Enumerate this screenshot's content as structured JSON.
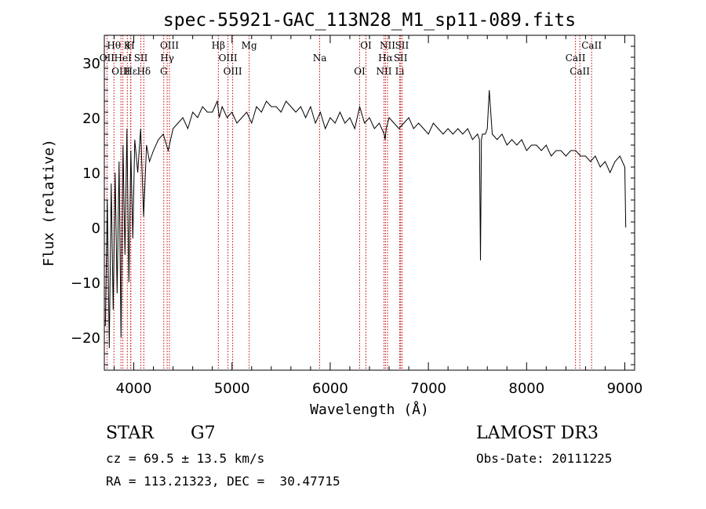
{
  "chart_data": {
    "type": "line",
    "title": "spec-55921-GAC_113N28_M1_sp11-089.fits",
    "xlabel": "Wavelength (Å)",
    "ylabel": "Flux (relative)",
    "xlim": [
      3700,
      9100
    ],
    "ylim": [
      -26,
      35
    ],
    "xticks": [
      4000,
      5000,
      6000,
      7000,
      8000,
      9000
    ],
    "yticks": [
      -20,
      -10,
      0,
      10,
      20,
      30
    ],
    "series": [
      {
        "name": "flux",
        "x": [
          3710,
          3730,
          3750,
          3770,
          3790,
          3810,
          3830,
          3850,
          3870,
          3890,
          3910,
          3930,
          3950,
          3970,
          3990,
          4010,
          4040,
          4070,
          4100,
          4130,
          4160,
          4200,
          4250,
          4300,
          4350,
          4400,
          4450,
          4500,
          4550,
          4600,
          4650,
          4700,
          4750,
          4800,
          4850,
          4870,
          4900,
          4950,
          5000,
          5050,
          5100,
          5150,
          5200,
          5250,
          5300,
          5350,
          5400,
          5450,
          5500,
          5550,
          5600,
          5650,
          5700,
          5750,
          5800,
          5850,
          5900,
          5950,
          6000,
          6050,
          6100,
          6150,
          6200,
          6250,
          6300,
          6350,
          6400,
          6450,
          6500,
          6550,
          6560,
          6570,
          6600,
          6650,
          6700,
          6750,
          6800,
          6850,
          6900,
          6950,
          7000,
          7050,
          7100,
          7150,
          7200,
          7250,
          7300,
          7350,
          7400,
          7450,
          7500,
          7520,
          7530,
          7540,
          7550,
          7580,
          7600,
          7620,
          7650,
          7700,
          7750,
          7800,
          7850,
          7900,
          7950,
          8000,
          8050,
          8100,
          8150,
          8200,
          8250,
          8300,
          8350,
          8400,
          8450,
          8500,
          8550,
          8600,
          8650,
          8700,
          8750,
          8800,
          8850,
          8900,
          8950,
          9000,
          9010
        ],
        "values": [
          -18,
          5,
          -22,
          8,
          -15,
          10,
          -12,
          12,
          -20,
          15,
          -5,
          18,
          -10,
          14,
          -2,
          16,
          10,
          18,
          2,
          15,
          12,
          14,
          16,
          17,
          14,
          18,
          19,
          20,
          18,
          21,
          20,
          22,
          21,
          21,
          23,
          20,
          22,
          20,
          21,
          19,
          20,
          21,
          19,
          22,
          21,
          23,
          22,
          22,
          21,
          23,
          22,
          21,
          22,
          20,
          22,
          19,
          21,
          18,
          20,
          19,
          21,
          19,
          20,
          18,
          22,
          19,
          20,
          18,
          19,
          17,
          16,
          18,
          20,
          19,
          18,
          19,
          20,
          18,
          19,
          18,
          17,
          19,
          18,
          17,
          18,
          17,
          18,
          17,
          18,
          16,
          17,
          16,
          -6,
          16,
          17,
          17,
          18,
          25,
          17,
          16,
          17,
          15,
          16,
          15,
          16,
          14,
          15,
          15,
          14,
          15,
          13,
          14,
          14,
          13,
          14,
          14,
          13,
          13,
          12,
          13,
          11,
          12,
          10,
          12,
          13,
          11,
          0
        ]
      }
    ],
    "line_markers": [
      {
        "label": "Hθ",
        "wavelength": 3798
      },
      {
        "label": "OII",
        "wavelength": 3727
      },
      {
        "label": "OIII",
        "wavelength": 3869
      },
      {
        "label": "K",
        "wavelength": 3934
      },
      {
        "label": "HeI",
        "wavelength": 3889
      },
      {
        "label": "Hε",
        "wavelength": 3970
      },
      {
        "label": "H",
        "wavelength": 3968
      },
      {
        "label": "SII",
        "wavelength": 4072
      },
      {
        "label": "Hδ",
        "wavelength": 4102
      },
      {
        "label": "OIII",
        "wavelength": 4363
      },
      {
        "label": "Hγ",
        "wavelength": 4340
      },
      {
        "label": "G",
        "wavelength": 4305
      },
      {
        "label": "Hβ",
        "wavelength": 4861
      },
      {
        "label": "OIII",
        "wavelength": 4959
      },
      {
        "label": "OIII",
        "wavelength": 5007
      },
      {
        "label": "Mg",
        "wavelength": 5175
      },
      {
        "label": "Na",
        "wavelength": 5893
      },
      {
        "label": "OI",
        "wavelength": 6300
      },
      {
        "label": "OI",
        "wavelength": 6364
      },
      {
        "label": "Hα",
        "wavelength": 6563
      },
      {
        "label": "NII",
        "wavelength": 6548
      },
      {
        "label": "NII",
        "wavelength": 6584
      },
      {
        "label": "SII",
        "wavelength": 6717
      },
      {
        "label": "Li",
        "wavelength": 6708
      },
      {
        "label": "SII",
        "wavelength": 6731
      },
      {
        "label": "CaII",
        "wavelength": 8498
      },
      {
        "label": "CaII",
        "wavelength": 8542
      },
      {
        "label": "CaII",
        "wavelength": 8662
      }
    ]
  },
  "info": {
    "object_class": "STAR",
    "subclass": "G7",
    "survey": "LAMOST DR3",
    "redshift": "cz = 69.5 ± 13.5 km/s",
    "obs_date": "Obs-Date: 20111225",
    "coords": "RA = 113.21323, DEC =  30.47715"
  },
  "colors": {
    "spectrum": "#000000",
    "marker_line": "#c00000",
    "axis": "#000000"
  }
}
